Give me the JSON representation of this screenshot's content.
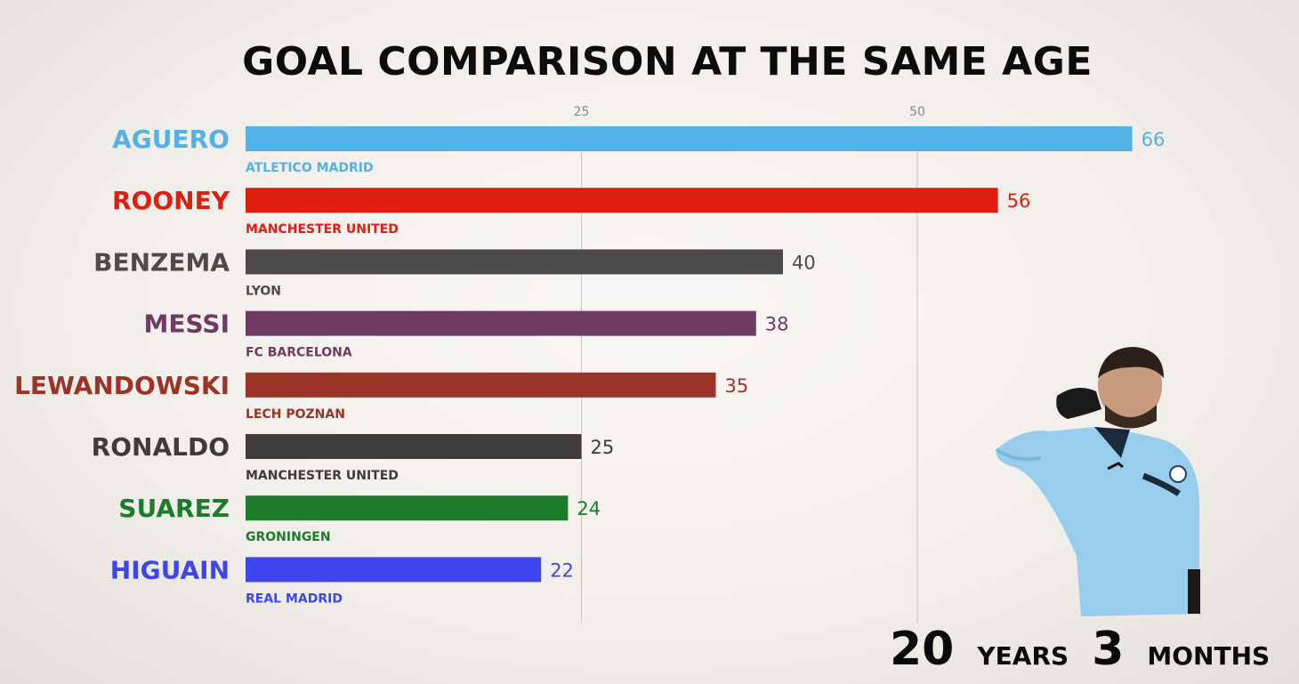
{
  "chart_data": {
    "type": "bar",
    "orientation": "horizontal",
    "title": "GOAL COMPARISON AT THE SAME AGE",
    "xlim": [
      0,
      66
    ],
    "xticks": [
      25,
      50
    ],
    "grid": true,
    "categories": [
      "AGUERO",
      "ROONEY",
      "BENZEMA",
      "MESSI",
      "LEWANDOWSKI",
      "RONALDO",
      "SUAREZ",
      "HIGUAIN"
    ],
    "clubs": [
      "ATLETICO MADRID",
      "MANCHESTER UNITED",
      "LYON",
      "FC BARCELONA",
      "LECH POZNAN",
      "MANCHESTER UNITED",
      "GRONINGEN",
      "REAL MADRID"
    ],
    "values": [
      66,
      56,
      40,
      38,
      35,
      25,
      24,
      22
    ],
    "colors": [
      "#52b1e6",
      "#e11d10",
      "#4d4a4b",
      "#6e3b63",
      "#9b3326",
      "#3e3b3b",
      "#1d7b2c",
      "#3d45ef"
    ]
  },
  "age": {
    "years": "20",
    "years_unit": "YEARS",
    "months": "3",
    "months_unit": "MONTHS"
  }
}
